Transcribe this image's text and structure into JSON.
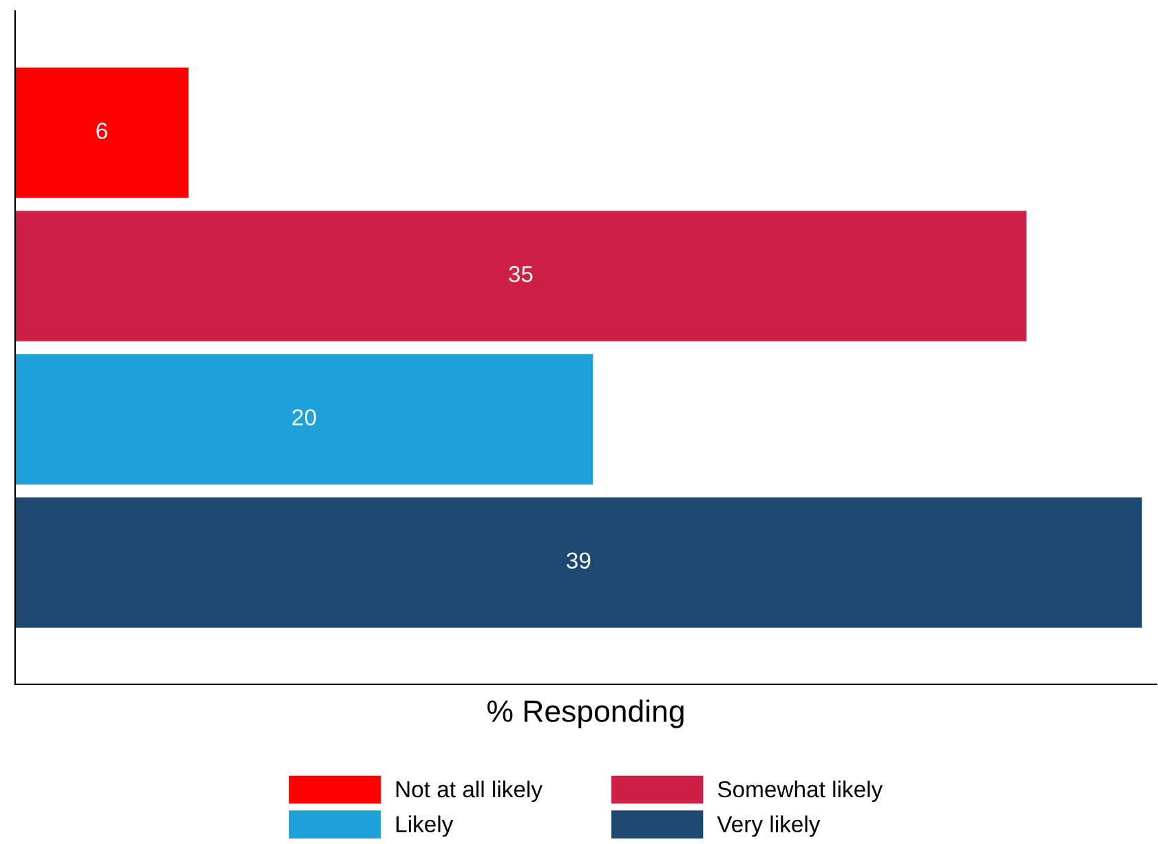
{
  "chart_data": {
    "type": "bar",
    "orientation": "horizontal",
    "stacked": true,
    "categories": [
      null,
      null,
      null,
      null
    ],
    "xlabel": "% Responding",
    "series": [
      {
        "name": "Not at all likely",
        "color": "#ff0000",
        "values": [
          6,
          null,
          null,
          null
        ]
      },
      {
        "name": "Somewhat likely",
        "color": "#ce2045",
        "values": [
          null,
          35,
          null,
          null
        ]
      },
      {
        "name": "Likely",
        "color": "#1da1d8",
        "values": [
          null,
          null,
          20,
          null
        ]
      },
      {
        "name": "Very likely",
        "color": "#1c4872",
        "values": [
          null,
          null,
          null,
          39
        ]
      }
    ],
    "data_labels": true,
    "tick_labels": false,
    "grid": false,
    "legend": "bottom"
  }
}
